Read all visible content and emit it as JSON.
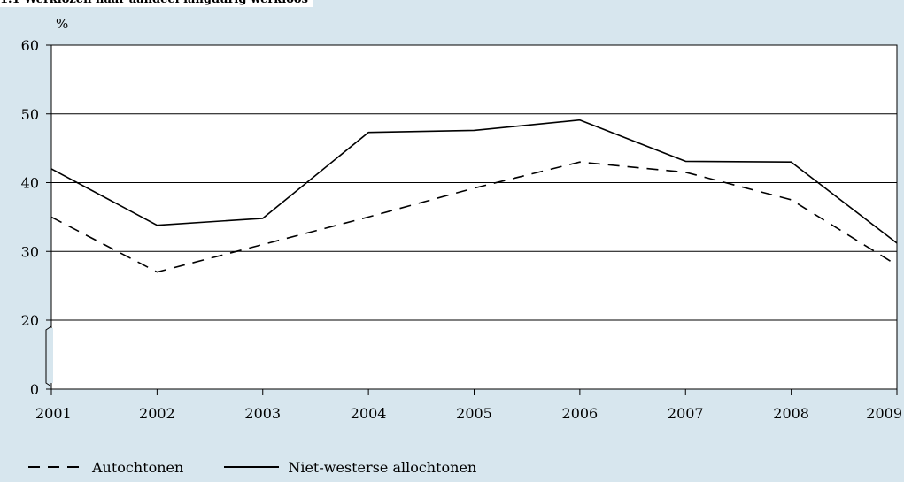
{
  "chart_data": {
    "type": "line",
    "title": "1.1 Werklozen naar aandeel langdurig werkloos",
    "ylabel": "%",
    "x": [
      "2001",
      "2002",
      "2003",
      "2004",
      "2005",
      "2006",
      "2007",
      "2008",
      "2009"
    ],
    "yticks": [
      "0",
      "20",
      "30",
      "40",
      "50",
      "60"
    ],
    "ylim": [
      0,
      60
    ],
    "y_axis_break": "between 0 and 20",
    "grid": true,
    "legend_position": "bottom",
    "series": [
      {
        "name": "Autochtonen",
        "style": "dashed",
        "values": [
          35,
          27,
          31,
          35,
          39.2,
          43,
          41.5,
          37.5,
          28
        ]
      },
      {
        "name": "Niet-westerse allochtonen",
        "style": "solid",
        "values": [
          42,
          33.8,
          34.8,
          47.3,
          47.6,
          49.1,
          43.1,
          43,
          31.2
        ]
      }
    ]
  }
}
